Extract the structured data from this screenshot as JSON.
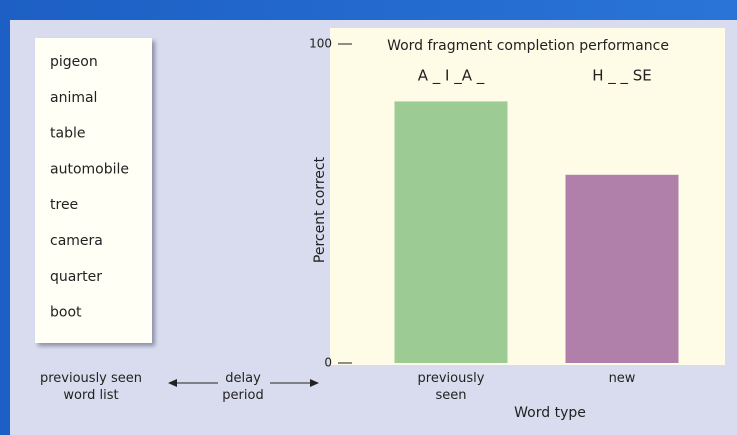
{
  "word_list": {
    "words": [
      "pigeon",
      "animal",
      "table",
      "automobile",
      "tree",
      "camera",
      "quarter",
      "boot"
    ],
    "caption": "previously seen word list",
    "delay": "delay period"
  },
  "chart_data": {
    "type": "bar",
    "title": "Word fragment completion performance",
    "categories": [
      "previously seen",
      "new"
    ],
    "values": [
      82,
      59
    ],
    "colors": [
      "#9ccc94",
      "#b07faa"
    ],
    "annotations": [
      "A _ I _A _",
      "H _ _ SE"
    ],
    "y_label": "Percent correct",
    "x_label": "Word type",
    "ylim": [
      0,
      100
    ],
    "yticks": [
      0,
      100
    ]
  }
}
